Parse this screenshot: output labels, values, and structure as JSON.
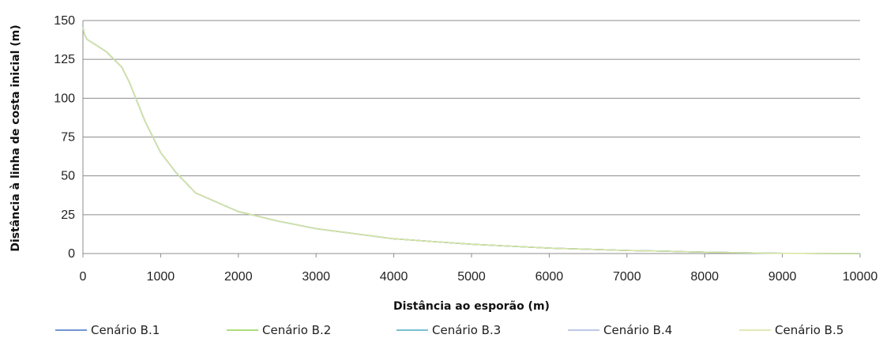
{
  "chart_data": {
    "type": "line",
    "xlabel": "Distância ao esporão  (m)",
    "ylabel": "Distância à linha de costa inicial (m)",
    "xlim": [
      0,
      10000
    ],
    "ylim": [
      0,
      150
    ],
    "x_ticks": [
      0,
      1000,
      2000,
      3000,
      4000,
      5000,
      6000,
      7000,
      8000,
      9000,
      10000
    ],
    "y_ticks": [
      0,
      25,
      50,
      75,
      100,
      125,
      150
    ],
    "grid": "horizontal",
    "legend_position": "bottom",
    "series": [
      {
        "name": "Cenário B.1",
        "color": "#4472C4",
        "x": [
          0,
          20,
          50,
          300,
          500,
          600,
          800,
          1000,
          1200,
          1450,
          2000,
          2500,
          3000,
          4000,
          5000,
          6000,
          7000,
          7500,
          7700,
          8000,
          8500,
          8700,
          9000,
          10000
        ],
        "y": [
          146,
          141,
          138,
          130,
          120,
          110,
          85,
          65,
          52,
          39,
          27,
          21,
          16,
          9.5,
          6,
          3.5,
          2,
          1.5,
          1.2,
          0.9,
          0.5,
          0.3,
          0.15,
          0
        ]
      },
      {
        "name": "Cenário B.2",
        "color": "#92D050",
        "x": [
          0,
          20,
          50,
          300,
          500,
          600,
          800,
          1000,
          1200,
          1450,
          2000,
          2500,
          3000,
          4000,
          5000,
          6000,
          7000,
          7500,
          7700,
          8000,
          8500,
          8700,
          9000,
          10000
        ],
        "y": [
          146,
          141,
          138,
          130,
          120,
          110,
          85,
          65,
          52,
          39,
          27,
          21,
          16,
          9.5,
          6,
          3.5,
          2,
          1.5,
          1.2,
          0.9,
          0.5,
          0.3,
          0.15,
          0
        ]
      },
      {
        "name": "Cenário B.3",
        "color": "#4BACC6",
        "x": [
          0,
          20,
          50,
          300,
          500,
          600,
          800,
          1000,
          1200,
          1450,
          2000,
          2500,
          3000,
          4000,
          5000,
          6000,
          7000,
          7500,
          7700,
          8000,
          8500,
          8700,
          9000,
          10000
        ],
        "y": [
          146,
          141,
          138,
          130,
          120,
          110,
          85,
          65,
          52,
          39,
          27,
          21,
          16,
          9.5,
          6,
          3.5,
          2,
          1.5,
          1.2,
          0.9,
          0.5,
          0.3,
          0.15,
          0
        ]
      },
      {
        "name": "Cenário B.4",
        "color": "#A9B7E0",
        "x": [
          0,
          20,
          50,
          300,
          500,
          600,
          800,
          1000,
          1200,
          1450,
          2000,
          2500,
          3000,
          4000,
          5000,
          6000,
          7000,
          7500,
          7700,
          8000,
          8500,
          8700,
          9000,
          10000
        ],
        "y": [
          146,
          141,
          138,
          130,
          120,
          110,
          85,
          65,
          52,
          39,
          27,
          21,
          16,
          9.5,
          6,
          3.5,
          2,
          1.5,
          1.2,
          0.9,
          0.5,
          0.3,
          0.15,
          0
        ]
      },
      {
        "name": "Cenário B.5",
        "color": "#D7E4A0",
        "x": [
          0,
          20,
          50,
          300,
          500,
          600,
          800,
          1000,
          1200,
          1450,
          2000,
          2500,
          3000,
          4000,
          5000,
          6000,
          7000,
          7500,
          7700,
          8000,
          8500,
          8700,
          9000,
          10000
        ],
        "y": [
          146,
          141,
          138,
          130,
          120,
          110,
          85,
          65,
          52,
          39,
          27,
          21,
          16,
          9.5,
          6,
          3.5,
          2,
          1.5,
          1.2,
          0.9,
          0.5,
          0.3,
          0.15,
          0
        ]
      }
    ]
  }
}
